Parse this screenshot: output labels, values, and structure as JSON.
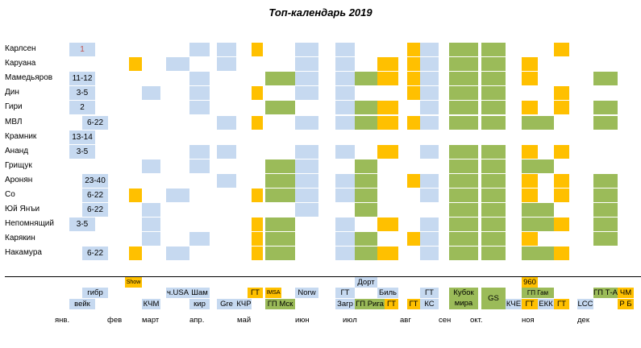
{
  "title": "Топ-календарь 2019",
  "colors": {
    "classical": "#c6d9f0",
    "rapid_blitz": "#ffc000",
    "grand_prix_cup": "#9bbb59",
    "highlight_text": "#c0504d"
  },
  "players": [
    {
      "name": "Карлсен",
      "rating": "1"
    },
    {
      "name": "Каруана",
      "rating": ""
    },
    {
      "name": "Мамедьяров",
      "rating": "11-12"
    },
    {
      "name": "Дин",
      "rating": "3-5"
    },
    {
      "name": "Гири",
      "rating": "2"
    },
    {
      "name": "МВЛ",
      "rating": "6-22"
    },
    {
      "name": "Крамник",
      "rating": "13-14"
    },
    {
      "name": "Ананд",
      "rating": "3-5"
    },
    {
      "name": "Грищук",
      "rating": ""
    },
    {
      "name": "Аронян",
      "rating": "23-40"
    },
    {
      "name": "Со",
      "rating": "6-22"
    },
    {
      "name": "Юй Янъи",
      "rating": "6-22"
    },
    {
      "name": "Непомнящий",
      "rating": "3-5"
    },
    {
      "name": "Карякин",
      "rating": ""
    },
    {
      "name": "Накамура",
      "rating": "6-22"
    }
  ],
  "events": {
    "show": "Show",
    "gibr": "гибр",
    "veik": "вейк",
    "kchm": "КЧМ",
    "chusa": "ч.USA",
    "sham": "Шам",
    "kir": "кир",
    "gre": "Gre",
    "kchr": "КЧР",
    "gt_may": "ГТ",
    "imsa": "IMSA",
    "gp_msk": "ГП Мск",
    "norw": "Norw",
    "gt_jul": "ГТ",
    "zagr": "Загр",
    "dort": "Дорт",
    "gp_riga": "ГП Рига",
    "bil": "Биль",
    "gt_jul2": "ГТ",
    "gt_aug": "ГТ",
    "gt_aug2": "ГТ",
    "ks": "КС",
    "cup1": "Кубок",
    "cup2": "мира",
    "gs": "GS",
    "kche": "КЧЕ",
    "f960": "960",
    "gp_gam": "ГП Гам",
    "gt_nov": "ГТ",
    "ekk": "ЕКК",
    "gt_nov2": "ГТ",
    "lcc": "LCC",
    "gp_ta": "ГП Т-А",
    "chm": "ЧМ",
    "rb": "Р Б"
  },
  "months": [
    "янв.",
    "фев",
    "март",
    "апр.",
    "май",
    "июн",
    "июл",
    "авг",
    "сен",
    "окт.",
    "ноя",
    "дек"
  ]
}
